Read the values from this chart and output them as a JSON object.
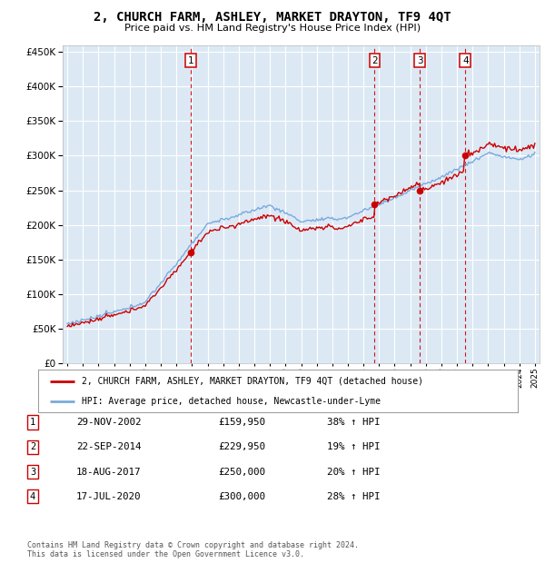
{
  "title": "2, CHURCH FARM, ASHLEY, MARKET DRAYTON, TF9 4QT",
  "subtitle": "Price paid vs. HM Land Registry's House Price Index (HPI)",
  "background_color": "#dce9f5",
  "plot_bg_color": "#dce9f5",
  "grid_color": "#ffffff",
  "sale_color": "#cc0000",
  "hpi_color": "#7aaadd",
  "yticks": [
    0,
    50000,
    100000,
    150000,
    200000,
    250000,
    300000,
    350000,
    400000,
    450000
  ],
  "ylim": [
    0,
    460000
  ],
  "xlim_start": 1994.7,
  "xlim_end": 2025.3,
  "sale_markers": [
    {
      "label": "1",
      "date_num": 2002.91,
      "price": 159950
    },
    {
      "label": "2",
      "date_num": 2014.72,
      "price": 229950
    },
    {
      "label": "3",
      "date_num": 2017.63,
      "price": 250000
    },
    {
      "label": "4",
      "date_num": 2020.54,
      "price": 300000
    }
  ],
  "legend_sale_label": "2, CHURCH FARM, ASHLEY, MARKET DRAYTON, TF9 4QT (detached house)",
  "legend_hpi_label": "HPI: Average price, detached house, Newcastle-under-Lyme",
  "table_rows": [
    {
      "num": "1",
      "date": "29-NOV-2002",
      "price": "£159,950",
      "hpi": "38% ↑ HPI"
    },
    {
      "num": "2",
      "date": "22-SEP-2014",
      "price": "£229,950",
      "hpi": "19% ↑ HPI"
    },
    {
      "num": "3",
      "date": "18-AUG-2017",
      "price": "£250,000",
      "hpi": "20% ↑ HPI"
    },
    {
      "num": "4",
      "date": "17-JUL-2020",
      "price": "£300,000",
      "hpi": "28% ↑ HPI"
    }
  ],
  "footnote": "Contains HM Land Registry data © Crown copyright and database right 2024.\nThis data is licensed under the Open Government Licence v3.0."
}
